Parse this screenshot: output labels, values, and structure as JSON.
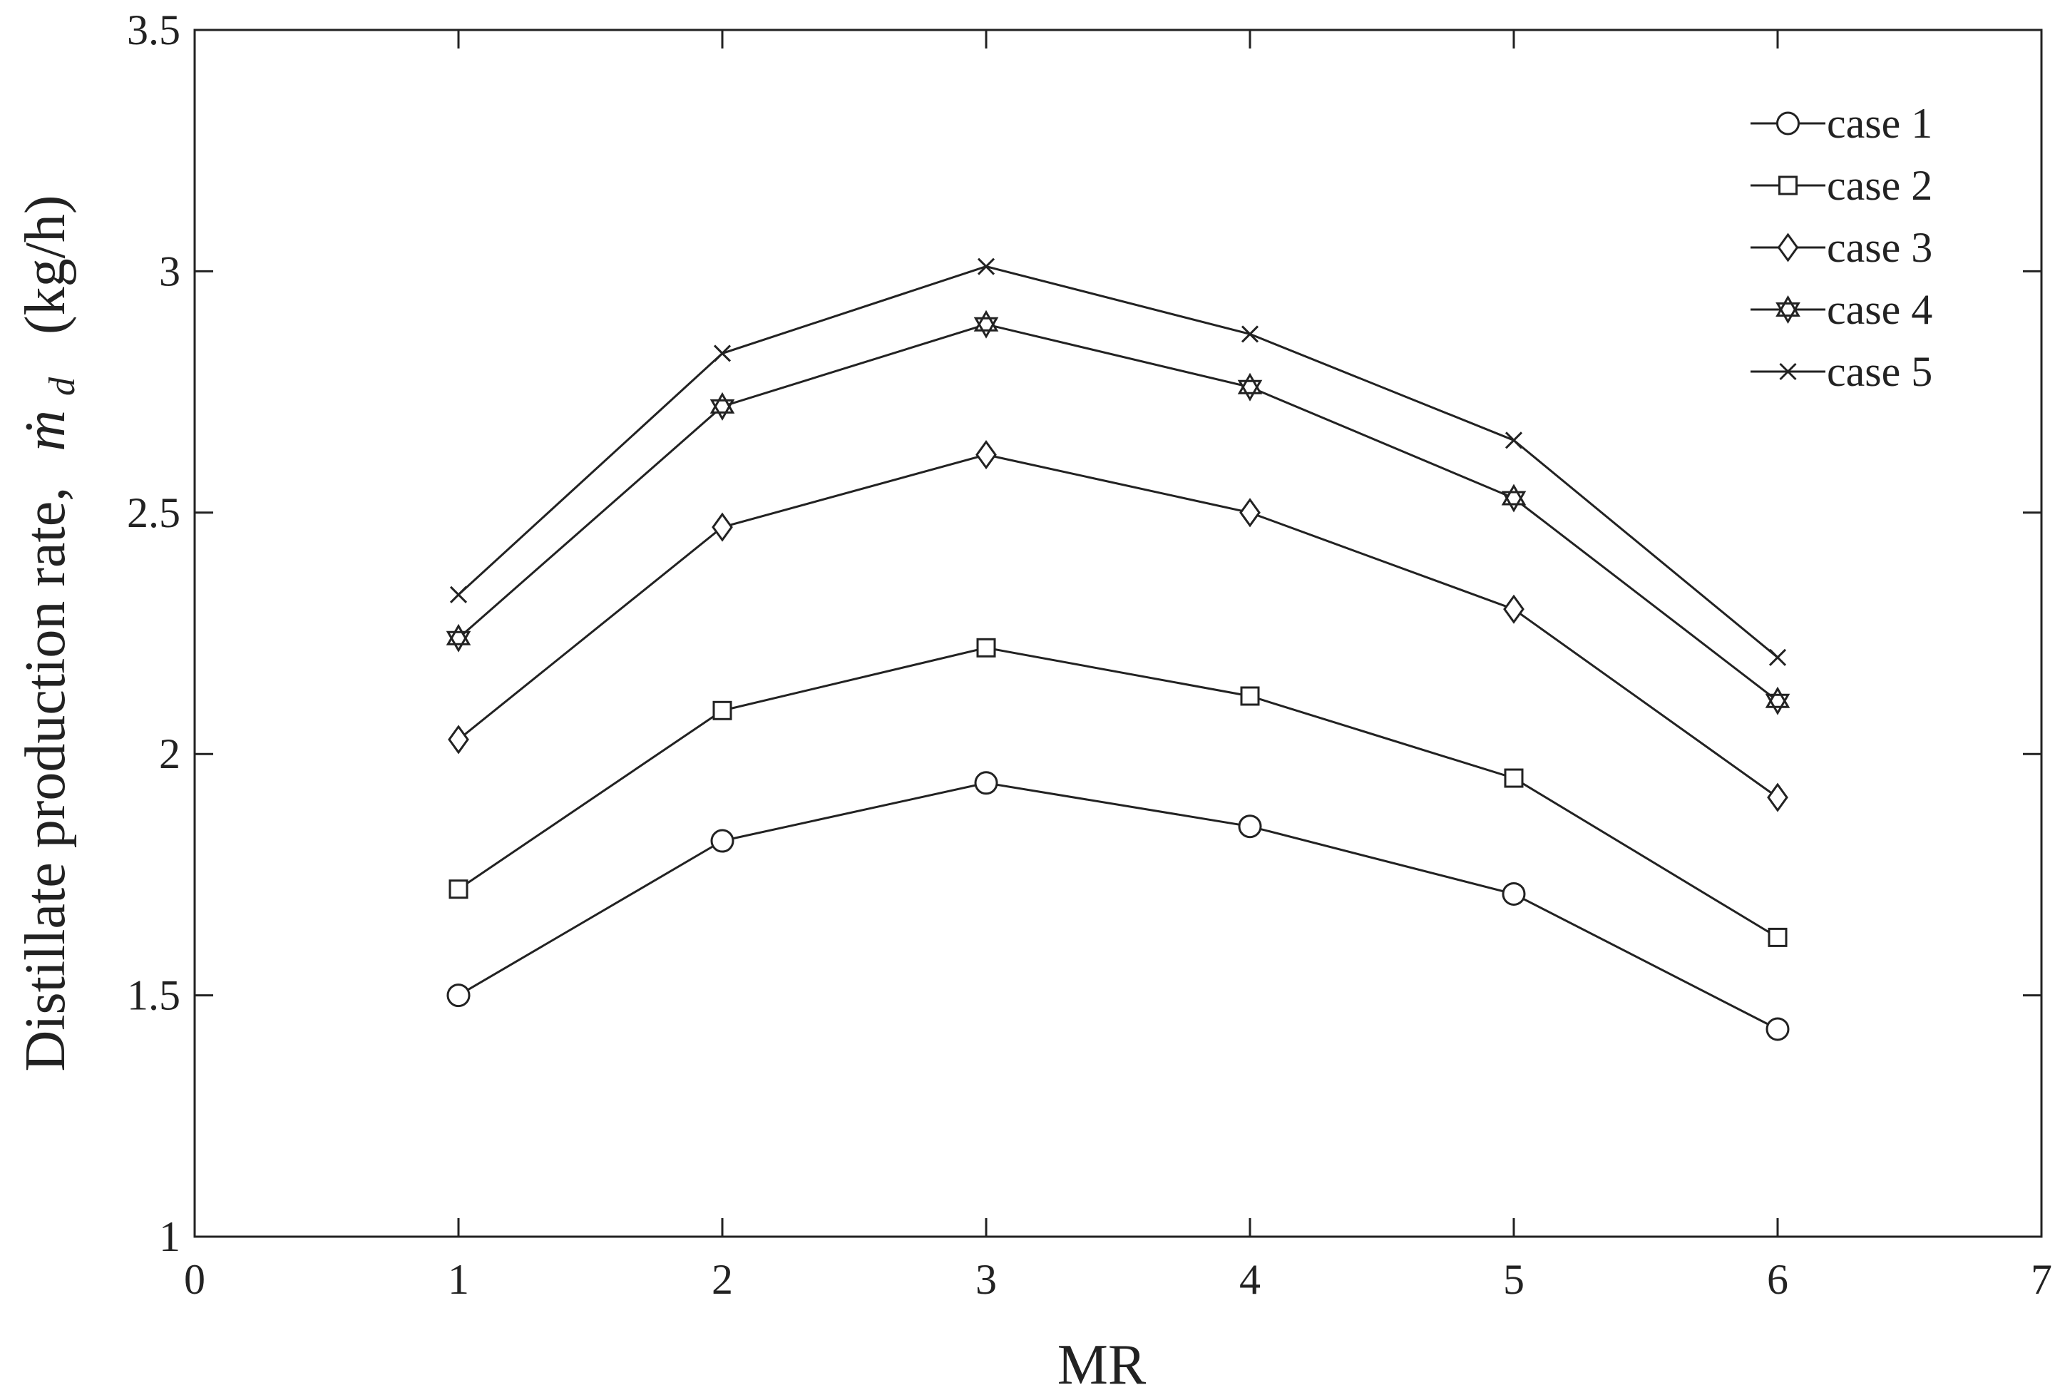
{
  "chart_data": {
    "type": "line",
    "xlabel": "MR",
    "ylabel": {
      "text": "Distillate production rate,",
      "symbol": "ṁ",
      "subscript": "d",
      "unit": "(kg/h)"
    },
    "xlim": [
      0,
      7
    ],
    "ylim": [
      1,
      3.5
    ],
    "x_ticks": [
      "0",
      "1",
      "2",
      "3",
      "4",
      "5",
      "6",
      "7"
    ],
    "y_ticks": [
      "1",
      "1.5",
      "2",
      "2.5",
      "3",
      "3.5"
    ],
    "grid": false,
    "legend_position": "top-right",
    "x": [
      1,
      2,
      3,
      4,
      5,
      6
    ],
    "series": [
      {
        "name": "case 1",
        "marker": "circle",
        "values": [
          1.5,
          1.82,
          1.94,
          1.85,
          1.71,
          1.43
        ]
      },
      {
        "name": "case 2",
        "marker": "square",
        "values": [
          1.72,
          2.09,
          2.22,
          2.12,
          1.95,
          1.62
        ]
      },
      {
        "name": "case 3",
        "marker": "diamond",
        "values": [
          2.03,
          2.47,
          2.62,
          2.5,
          2.3,
          1.91
        ]
      },
      {
        "name": "case 4",
        "marker": "hexagram",
        "values": [
          2.24,
          2.72,
          2.89,
          2.76,
          2.53,
          2.11
        ]
      },
      {
        "name": "case 5",
        "marker": "x",
        "values": [
          2.33,
          2.83,
          3.01,
          2.87,
          2.65,
          2.2
        ]
      }
    ],
    "colors": {
      "line": "#222222",
      "background": "#ffffff"
    }
  }
}
